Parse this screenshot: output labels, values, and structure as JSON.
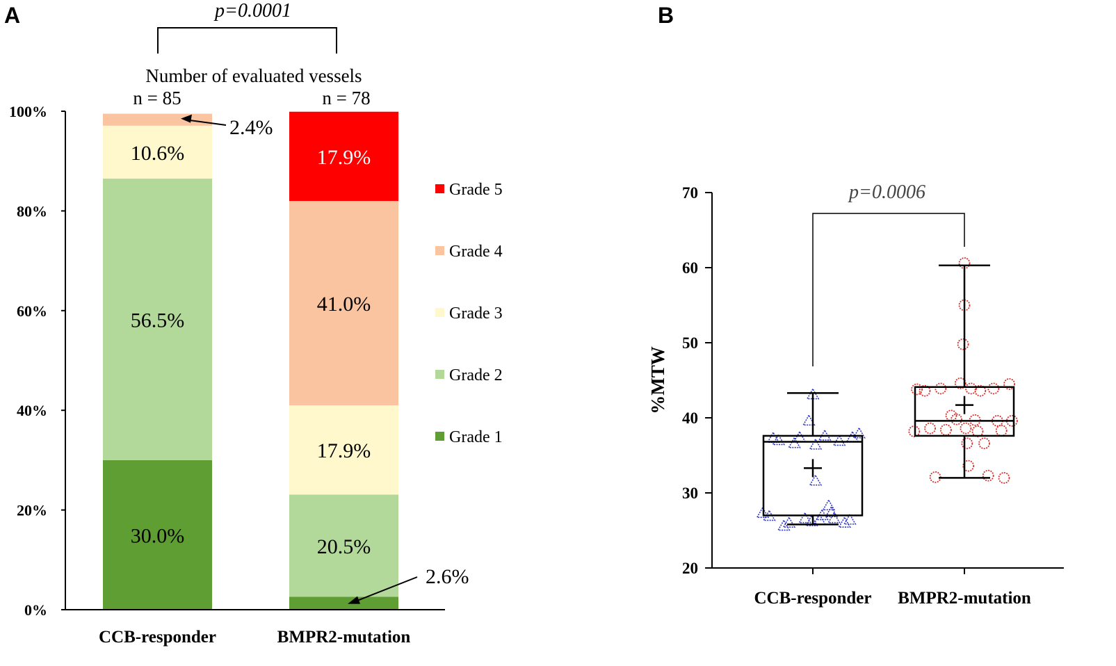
{
  "chart_data": [
    {
      "panel": "A",
      "type": "bar",
      "stacked": true,
      "categories": [
        "CCB-responder",
        "BMPR2-mutation"
      ],
      "n_header": "Number  of evaluated  vessels",
      "n_labels": [
        "n = 85",
        "n = 78"
      ],
      "significance": "p=0.0001",
      "ylim": [
        0,
        100
      ],
      "yticks": [
        "0%",
        "20%",
        "40%",
        "60%",
        "80%",
        "100%"
      ],
      "tick_values": [
        0,
        20,
        40,
        60,
        80,
        100
      ],
      "series": [
        {
          "name": "Grade 1",
          "color": "#5e9e32",
          "values": [
            30.0,
            2.6
          ],
          "labels": [
            "30.0%",
            "2.6%"
          ],
          "label_color": "#000000"
        },
        {
          "name": "Grade 2",
          "color": "#b3d99a",
          "values": [
            56.5,
            20.5
          ],
          "labels": [
            "56.5%",
            "20.5%"
          ],
          "label_color": "#000000"
        },
        {
          "name": "Grade 3",
          "color": "#fff8cc",
          "values": [
            10.6,
            17.9
          ],
          "labels": [
            "10.6%",
            "17.9%"
          ],
          "label_color": "#000000"
        },
        {
          "name": "Grade 4",
          "color": "#fbc4a0",
          "values": [
            2.4,
            41.0
          ],
          "labels": [
            "2.4%",
            "41.0%"
          ],
          "label_color": "#000000"
        },
        {
          "name": "Grade 5",
          "color": "#ff0000",
          "values": [
            0.0,
            17.9
          ],
          "labels": [
            "",
            "17.9%"
          ],
          "label_color": "#ffffff"
        }
      ]
    },
    {
      "panel": "B",
      "type": "box",
      "categories": [
        "CCB-responder",
        "BMPR2-mutation"
      ],
      "ylabel": "%MTW",
      "ylim": [
        20,
        70
      ],
      "yticks": [
        "20",
        "30",
        "40",
        "50",
        "60",
        "70"
      ],
      "tick_values": [
        20,
        30,
        40,
        50,
        60,
        70
      ],
      "significance": "p=0.0006",
      "boxes": [
        {
          "name": "CCB-responder",
          "min": 25.8,
          "q1": 27.0,
          "median": 36.8,
          "q3": 37.6,
          "max": 43.3,
          "mean": 33.3,
          "color": "#2f37c8",
          "marker": "triangle",
          "points": [
            [
              -0.38,
              27.3
            ],
            [
              -0.33,
              26.9
            ],
            [
              -0.3,
              37.3
            ],
            [
              -0.26,
              37.0
            ],
            [
              -0.22,
              25.6
            ],
            [
              -0.18,
              26.0
            ],
            [
              -0.14,
              36.6
            ],
            [
              -0.1,
              37.4
            ],
            [
              -0.06,
              26.6
            ],
            [
              -0.03,
              39.6
            ],
            [
              -0.01,
              26.2
            ],
            [
              0.0,
              43.1
            ],
            [
              0.02,
              36.4
            ],
            [
              0.02,
              31.6
            ],
            [
              0.05,
              26.4
            ],
            [
              0.07,
              27.0
            ],
            [
              0.09,
              37.6
            ],
            [
              0.12,
              28.3
            ],
            [
              0.14,
              27.4
            ],
            [
              0.16,
              26.6
            ],
            [
              0.2,
              36.9
            ],
            [
              0.24,
              26.0
            ],
            [
              0.28,
              26.4
            ],
            [
              0.3,
              37.4
            ],
            [
              0.35,
              37.9
            ]
          ]
        },
        {
          "name": "BMPR2-mutation",
          "min": 32.0,
          "q1": 37.6,
          "median": 39.6,
          "q3": 44.1,
          "max": 60.3,
          "mean": 41.7,
          "color": "#d8312e",
          "marker": "circle",
          "points": [
            [
              -0.38,
              38.2
            ],
            [
              -0.36,
              43.8
            ],
            [
              -0.3,
              43.6
            ],
            [
              -0.26,
              38.6
            ],
            [
              -0.22,
              32.1
            ],
            [
              -0.18,
              43.9
            ],
            [
              -0.14,
              38.4
            ],
            [
              -0.1,
              40.3
            ],
            [
              -0.06,
              39.8
            ],
            [
              -0.03,
              44.6
            ],
            [
              -0.01,
              49.8
            ],
            [
              0.0,
              55.0
            ],
            [
              0.0,
              60.6
            ],
            [
              0.01,
              38.6
            ],
            [
              0.02,
              36.6
            ],
            [
              0.03,
              33.6
            ],
            [
              0.05,
              43.9
            ],
            [
              0.08,
              39.7
            ],
            [
              0.1,
              38.2
            ],
            [
              0.12,
              43.6
            ],
            [
              0.15,
              36.6
            ],
            [
              0.18,
              32.3
            ],
            [
              0.22,
              43.9
            ],
            [
              0.25,
              39.6
            ],
            [
              0.28,
              38.3
            ],
            [
              0.3,
              32.0
            ],
            [
              0.34,
              44.5
            ],
            [
              0.36,
              39.6
            ]
          ]
        }
      ]
    }
  ],
  "labels": {
    "panel_a": "A",
    "panel_b": "B"
  }
}
